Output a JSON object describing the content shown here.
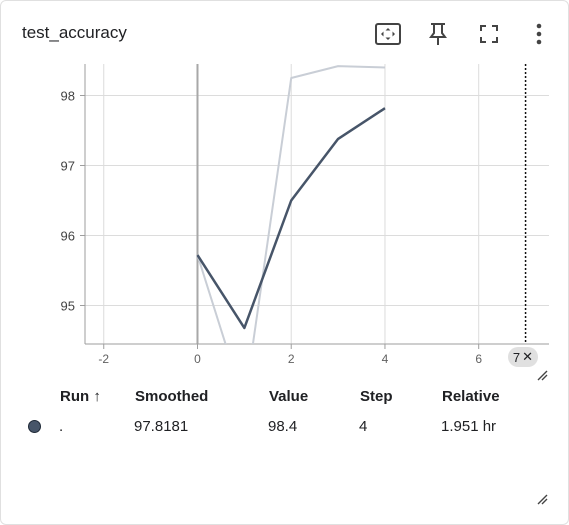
{
  "card": {
    "title": "test_accuracy"
  },
  "toolbar": {
    "fit_icon": "fit-domain-icon",
    "pin_icon": "pin-icon",
    "fullscreen_icon": "fullscreen-icon",
    "menu_icon": "more-vert-icon"
  },
  "chart_data": {
    "type": "line",
    "title": "test_accuracy",
    "xlabel": "",
    "ylabel": "",
    "xlim": [
      -2.4,
      7.5
    ],
    "ylim": [
      94.45,
      98.45
    ],
    "x_ticks": [
      -2,
      0,
      2,
      4,
      6
    ],
    "y_ticks": [
      95,
      96,
      97,
      98
    ],
    "grid": true,
    "series": [
      {
        "role": "raw",
        "color": "#c9ced6",
        "x": [
          0,
          1,
          2,
          3,
          4
        ],
        "y": [
          95.72,
          93.6,
          98.25,
          98.42,
          98.4
        ]
      },
      {
        "role": "smoothed",
        "color": "#475569",
        "x": [
          0,
          1,
          2,
          3,
          4
        ],
        "y": [
          95.72,
          94.68,
          96.5,
          97.38,
          97.8181
        ]
      }
    ],
    "hover_step_badge": "7",
    "hover_step_x": 7
  },
  "table": {
    "headers": {
      "run": "Run ↑",
      "smoothed": "Smoothed",
      "value": "Value",
      "step": "Step",
      "relative": "Relative"
    },
    "rows": [
      {
        "color": "#475569",
        "run": ".",
        "smoothed": "97.8181",
        "value": "98.4",
        "step": "4",
        "relative": "1.951 hr"
      }
    ]
  }
}
